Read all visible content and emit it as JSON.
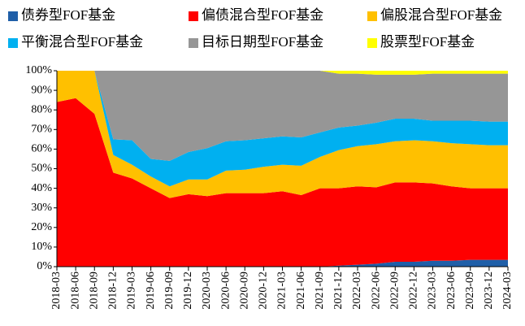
{
  "chart_data": {
    "type": "stacked_area",
    "categories": [
      "2018-03",
      "2018-06",
      "2018-09",
      "2018-12",
      "2019-03",
      "2019-06",
      "2019-09",
      "2019-12",
      "2020-03",
      "2020-06",
      "2020-09",
      "2020-12",
      "2021-03",
      "2021-06",
      "2021-09",
      "2021-12",
      "2022-03",
      "2022-06",
      "2022-09",
      "2022-12",
      "2023-03",
      "2023-06",
      "2023-09",
      "2023-12",
      "2024-03"
    ],
    "series": [
      {
        "name": "债券型FOF基金",
        "color": "#1f5fa8",
        "values": [
          0,
          0,
          0,
          0,
          0,
          0,
          0,
          0,
          0,
          0,
          0,
          0,
          0,
          0,
          0,
          0.5,
          1,
          1.5,
          2.5,
          2.5,
          3,
          3,
          3.5,
          3.5,
          3.5
        ]
      },
      {
        "name": "偏债混合型FOF基金",
        "color": "#ff0000",
        "values": [
          84,
          86,
          78,
          48,
          45,
          40,
          35,
          37,
          36,
          37.5,
          37.5,
          37.5,
          38.5,
          36.5,
          40,
          39.5,
          40,
          39,
          40.5,
          40.5,
          39.5,
          38,
          36.5,
          36.5,
          36.5
        ]
      },
      {
        "name": "偏股混合型FOF基金",
        "color": "#ffc000",
        "values": [
          16,
          14,
          22,
          9,
          7,
          6,
          6,
          7.5,
          8.5,
          11.5,
          12,
          13.5,
          13.5,
          15,
          16,
          19.5,
          20.5,
          22,
          21,
          21.5,
          21.5,
          22,
          22.5,
          22,
          22
        ]
      },
      {
        "name": "平衡混合型FOF基金",
        "color": "#00b0f0",
        "values": [
          0,
          0,
          0,
          8,
          12.5,
          9,
          13,
          14,
          16,
          15,
          15,
          14.5,
          14.5,
          14.5,
          12.5,
          11.5,
          10.5,
          11,
          11.5,
          11,
          10.5,
          11.5,
          12,
          12,
          12
        ]
      },
      {
        "name": "目标日期型FOF基金",
        "color": "#969696",
        "values": [
          0,
          0,
          0,
          35,
          35.5,
          45,
          46,
          41.5,
          39.5,
          36,
          35.5,
          34.5,
          33.5,
          34,
          31.5,
          27.5,
          26.5,
          24.5,
          22.5,
          22.5,
          24,
          24,
          24,
          24.5,
          24.5
        ]
      },
      {
        "name": "股票型FOF基金",
        "color": "#ffff00",
        "values": [
          0,
          0,
          0,
          0,
          0,
          0,
          0,
          0,
          0,
          0,
          0,
          0,
          0,
          0,
          0,
          1.5,
          1.5,
          2,
          2,
          2,
          1.5,
          1.5,
          1.5,
          1.5,
          1.5
        ]
      }
    ],
    "ylim": [
      0,
      100
    ],
    "yticks": [
      {
        "value": 0,
        "label": "0%"
      },
      {
        "value": 10,
        "label": "10%"
      },
      {
        "value": 20,
        "label": "20%"
      },
      {
        "value": 30,
        "label": "30%"
      },
      {
        "value": 40,
        "label": "40%"
      },
      {
        "value": 50,
        "label": "50%"
      },
      {
        "value": 60,
        "label": "60%"
      },
      {
        "value": 70,
        "label": "70%"
      },
      {
        "value": 80,
        "label": "80%"
      },
      {
        "value": 90,
        "label": "90%"
      },
      {
        "value": 100,
        "label": "100%"
      }
    ]
  }
}
